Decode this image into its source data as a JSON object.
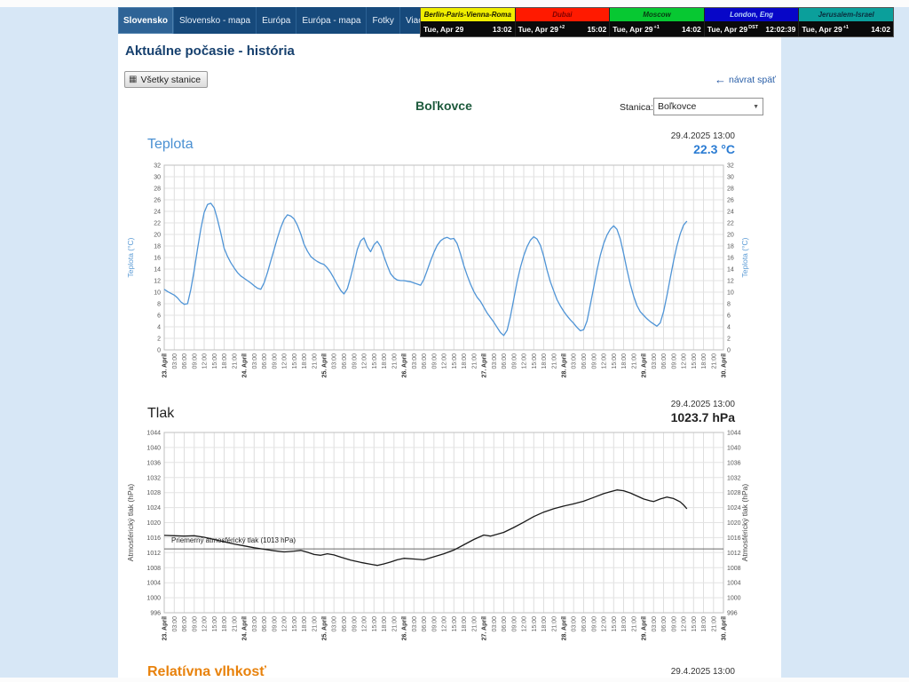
{
  "nav": {
    "tabs": [
      {
        "label": "Slovensko",
        "active": true
      },
      {
        "label": "Slovensko - mapa",
        "active": false
      },
      {
        "label": "Európa",
        "active": false
      },
      {
        "label": "Európa - mapa",
        "active": false
      },
      {
        "label": "Fotky",
        "active": false
      },
      {
        "label": "Viac...",
        "active": false
      }
    ]
  },
  "world_clock": {
    "cities": [
      {
        "name": "Berlin-Paris-Vienna-Roma",
        "bg": "#f0ee00",
        "fg": "#1a1a00",
        "date": "Tue, Apr 29",
        "offset": "",
        "time": "13:02"
      },
      {
        "name": "Dubai",
        "bg": "#ff1a00",
        "fg": "#7e0000",
        "date": "Tue, Apr 29",
        "offset": "+2",
        "time": "15:02"
      },
      {
        "name": "Moscow",
        "bg": "#07c832",
        "fg": "#083b12",
        "date": "Tue, Apr 29",
        "offset": "+1",
        "time": "14:02"
      },
      {
        "name": "London, Eng",
        "bg": "#0706c8",
        "fg": "#bcd8f8",
        "date": "Tue, Apr 29",
        "offset": "DST",
        "time": "12:02:39"
      },
      {
        "name": "Jerusalem-Israel",
        "bg": "#0b9f9b",
        "fg": "#0b2e3e",
        "date": "Tue, Apr 29",
        "offset": "+1",
        "time": "14:02"
      }
    ]
  },
  "page": {
    "title": "Aktuálne počasie - história",
    "all_stations_button": "Všetky stanice",
    "back_link": "návrat späť",
    "station_title": "Boľkovce",
    "station_label": "Stanica:",
    "station_select_value": "Boľkovce"
  },
  "chart_data": [
    {
      "type": "line",
      "title": "Teplota",
      "title_color": "#4a90d2",
      "timestamp": "29.4.2025 13:00",
      "current_value": "22.3 °C",
      "value_color": "#2b7cd3",
      "ylabel": "Teplota (°C)",
      "axis_title_color": "#5b9bd5",
      "line_color": "#4f94d6",
      "ylim": [
        0,
        32
      ],
      "ytick_step": 2,
      "xlim_hours": [
        0,
        168
      ],
      "xtick_step_hours": 3,
      "x_day_labels": [
        "23. Apríl",
        "24. Apríl",
        "25. Apríl",
        "26. Apríl",
        "27. Apríl",
        "28. Apríl",
        "29. Apríl",
        "30. Apríl"
      ],
      "x_time_labels": [
        "03:00",
        "06:00",
        "09:00",
        "12:00",
        "15:00",
        "18:00",
        "21:00"
      ],
      "points": [
        [
          0,
          10.5
        ],
        [
          1,
          10.1
        ],
        [
          2,
          9.8
        ],
        [
          3,
          9.5
        ],
        [
          4,
          9.0
        ],
        [
          5,
          8.3
        ],
        [
          6,
          7.9
        ],
        [
          7,
          8.0
        ],
        [
          8,
          10.5
        ],
        [
          9,
          13.8
        ],
        [
          10,
          17.5
        ],
        [
          11,
          21.0
        ],
        [
          12,
          23.8
        ],
        [
          13,
          25.2
        ],
        [
          14,
          25.4
        ],
        [
          15,
          24.6
        ],
        [
          16,
          22.6
        ],
        [
          17,
          20.2
        ],
        [
          18,
          17.6
        ],
        [
          19,
          16.2
        ],
        [
          20,
          15.1
        ],
        [
          21,
          14.2
        ],
        [
          22,
          13.4
        ],
        [
          23,
          12.8
        ],
        [
          24,
          12.4
        ],
        [
          25,
          12.0
        ],
        [
          26,
          11.6
        ],
        [
          27,
          11.1
        ],
        [
          28,
          10.7
        ],
        [
          29,
          10.5
        ],
        [
          30,
          11.6
        ],
        [
          31,
          13.4
        ],
        [
          32,
          15.4
        ],
        [
          33,
          17.4
        ],
        [
          34,
          19.4
        ],
        [
          35,
          21.2
        ],
        [
          36,
          22.6
        ],
        [
          37,
          23.4
        ],
        [
          38,
          23.2
        ],
        [
          39,
          22.7
        ],
        [
          40,
          21.6
        ],
        [
          41,
          20.1
        ],
        [
          42,
          18.3
        ],
        [
          43,
          17.1
        ],
        [
          44,
          16.2
        ],
        [
          45,
          15.7
        ],
        [
          46,
          15.3
        ],
        [
          47,
          15.0
        ],
        [
          48,
          14.8
        ],
        [
          49,
          14.2
        ],
        [
          50,
          13.4
        ],
        [
          51,
          12.4
        ],
        [
          52,
          11.3
        ],
        [
          53,
          10.3
        ],
        [
          54,
          9.7
        ],
        [
          55,
          10.6
        ],
        [
          56,
          12.6
        ],
        [
          57,
          15.0
        ],
        [
          58,
          17.4
        ],
        [
          59,
          18.9
        ],
        [
          60,
          19.4
        ],
        [
          61,
          17.9
        ],
        [
          62,
          17.0
        ],
        [
          63,
          18.2
        ],
        [
          64,
          18.8
        ],
        [
          65,
          17.9
        ],
        [
          66,
          16.2
        ],
        [
          67,
          14.6
        ],
        [
          68,
          13.2
        ],
        [
          69,
          12.5
        ],
        [
          70,
          12.1
        ],
        [
          71,
          12.0
        ],
        [
          72,
          12.0
        ],
        [
          73,
          11.9
        ],
        [
          74,
          11.8
        ],
        [
          75,
          11.6
        ],
        [
          76,
          11.4
        ],
        [
          77,
          11.2
        ],
        [
          78,
          12.2
        ],
        [
          79,
          13.8
        ],
        [
          80,
          15.4
        ],
        [
          81,
          16.9
        ],
        [
          82,
          18.1
        ],
        [
          83,
          18.9
        ],
        [
          84,
          19.3
        ],
        [
          85,
          19.5
        ],
        [
          86,
          19.2
        ],
        [
          87,
          19.3
        ],
        [
          88,
          18.4
        ],
        [
          89,
          16.6
        ],
        [
          90,
          14.6
        ],
        [
          91,
          12.9
        ],
        [
          92,
          11.4
        ],
        [
          93,
          10.1
        ],
        [
          94,
          9.1
        ],
        [
          95,
          8.4
        ],
        [
          96,
          7.4
        ],
        [
          97,
          6.4
        ],
        [
          98,
          5.6
        ],
        [
          99,
          4.8
        ],
        [
          100,
          3.9
        ],
        [
          101,
          3.0
        ],
        [
          102,
          2.5
        ],
        [
          103,
          3.4
        ],
        [
          104,
          5.8
        ],
        [
          105,
          8.8
        ],
        [
          106,
          11.8
        ],
        [
          107,
          14.3
        ],
        [
          108,
          16.3
        ],
        [
          109,
          17.9
        ],
        [
          110,
          19.0
        ],
        [
          111,
          19.6
        ],
        [
          112,
          19.2
        ],
        [
          113,
          18.1
        ],
        [
          114,
          16.2
        ],
        [
          115,
          13.8
        ],
        [
          116,
          11.8
        ],
        [
          117,
          10.2
        ],
        [
          118,
          8.7
        ],
        [
          119,
          7.6
        ],
        [
          120,
          6.7
        ],
        [
          121,
          5.9
        ],
        [
          122,
          5.2
        ],
        [
          123,
          4.6
        ],
        [
          124,
          3.9
        ],
        [
          125,
          3.3
        ],
        [
          126,
          3.5
        ],
        [
          127,
          5.0
        ],
        [
          128,
          7.8
        ],
        [
          129,
          10.8
        ],
        [
          130,
          13.8
        ],
        [
          131,
          16.4
        ],
        [
          132,
          18.4
        ],
        [
          133,
          19.9
        ],
        [
          134,
          20.9
        ],
        [
          135,
          21.5
        ],
        [
          136,
          20.9
        ],
        [
          137,
          19.2
        ],
        [
          138,
          16.7
        ],
        [
          139,
          13.9
        ],
        [
          140,
          11.4
        ],
        [
          141,
          9.3
        ],
        [
          142,
          7.7
        ],
        [
          143,
          6.6
        ],
        [
          144,
          6.0
        ],
        [
          145,
          5.4
        ],
        [
          146,
          4.9
        ],
        [
          147,
          4.5
        ],
        [
          148,
          4.1
        ],
        [
          149,
          4.7
        ],
        [
          150,
          6.6
        ],
        [
          151,
          9.4
        ],
        [
          152,
          12.4
        ],
        [
          153,
          15.4
        ],
        [
          154,
          18.0
        ],
        [
          155,
          20.1
        ],
        [
          156,
          21.6
        ],
        [
          157,
          22.3
        ]
      ]
    },
    {
      "type": "line",
      "title": "Tlak",
      "title_color": "#222222",
      "timestamp": "29.4.2025 13:00",
      "current_value": "1023.7 hPa",
      "value_color": "#222222",
      "ylabel": "Atmosférický tlak (hPa)",
      "axis_title_color": "#444444",
      "line_color": "#1a1a1a",
      "ylim": [
        996,
        1044
      ],
      "ytick_step": 4,
      "xlim_hours": [
        0,
        168
      ],
      "xtick_step_hours": 3,
      "x_day_labels": [
        "23. Apríl",
        "24. Apríl",
        "25. Apríl",
        "26. Apríl",
        "27. Apríl",
        "28. Apríl",
        "29. Apríl",
        "30. Apríl"
      ],
      "x_time_labels": [
        "03:00",
        "06:00",
        "09:00",
        "12:00",
        "15:00",
        "18:00",
        "21:00"
      ],
      "refline": {
        "value": 1013,
        "label": "Priemerný atmosférický tlak (1013 hPa)"
      },
      "points": [
        [
          0,
          1016.6
        ],
        [
          3,
          1016.5
        ],
        [
          6,
          1016.4
        ],
        [
          9,
          1016.5
        ],
        [
          12,
          1016.1
        ],
        [
          15,
          1015.5
        ],
        [
          18,
          1014.9
        ],
        [
          21,
          1014.3
        ],
        [
          24,
          1013.8
        ],
        [
          27,
          1013.3
        ],
        [
          30,
          1012.9
        ],
        [
          33,
          1012.5
        ],
        [
          36,
          1012.2
        ],
        [
          39,
          1012.4
        ],
        [
          41,
          1012.6
        ],
        [
          43,
          1012.1
        ],
        [
          45,
          1011.5
        ],
        [
          47,
          1011.3
        ],
        [
          49,
          1011.7
        ],
        [
          51,
          1011.4
        ],
        [
          53,
          1010.8
        ],
        [
          56,
          1010.0
        ],
        [
          59,
          1009.4
        ],
        [
          62,
          1008.9
        ],
        [
          64,
          1008.6
        ],
        [
          66,
          1009.0
        ],
        [
          68,
          1009.5
        ],
        [
          70,
          1010.1
        ],
        [
          72,
          1010.5
        ],
        [
          75,
          1010.3
        ],
        [
          78,
          1010.1
        ],
        [
          81,
          1010.9
        ],
        [
          84,
          1011.7
        ],
        [
          87,
          1012.7
        ],
        [
          90,
          1014.1
        ],
        [
          93,
          1015.5
        ],
        [
          96,
          1016.7
        ],
        [
          98,
          1016.4
        ],
        [
          100,
          1016.9
        ],
        [
          102,
          1017.4
        ],
        [
          105,
          1018.7
        ],
        [
          108,
          1020.1
        ],
        [
          111,
          1021.6
        ],
        [
          114,
          1022.8
        ],
        [
          117,
          1023.7
        ],
        [
          120,
          1024.4
        ],
        [
          123,
          1025.0
        ],
        [
          126,
          1025.7
        ],
        [
          129,
          1026.7
        ],
        [
          132,
          1027.7
        ],
        [
          134,
          1028.2
        ],
        [
          136,
          1028.7
        ],
        [
          138,
          1028.5
        ],
        [
          140,
          1027.9
        ],
        [
          142,
          1027.1
        ],
        [
          144,
          1026.3
        ],
        [
          146,
          1025.8
        ],
        [
          147,
          1025.6
        ],
        [
          149,
          1026.3
        ],
        [
          151,
          1026.8
        ],
        [
          153,
          1026.4
        ],
        [
          155,
          1025.5
        ],
        [
          156,
          1024.7
        ],
        [
          157,
          1023.7
        ]
      ]
    },
    {
      "type": "line",
      "title": "Relatívna vlhkosť",
      "title_color": "#e8820c",
      "timestamp": "29.4.2025 13:00"
    }
  ]
}
